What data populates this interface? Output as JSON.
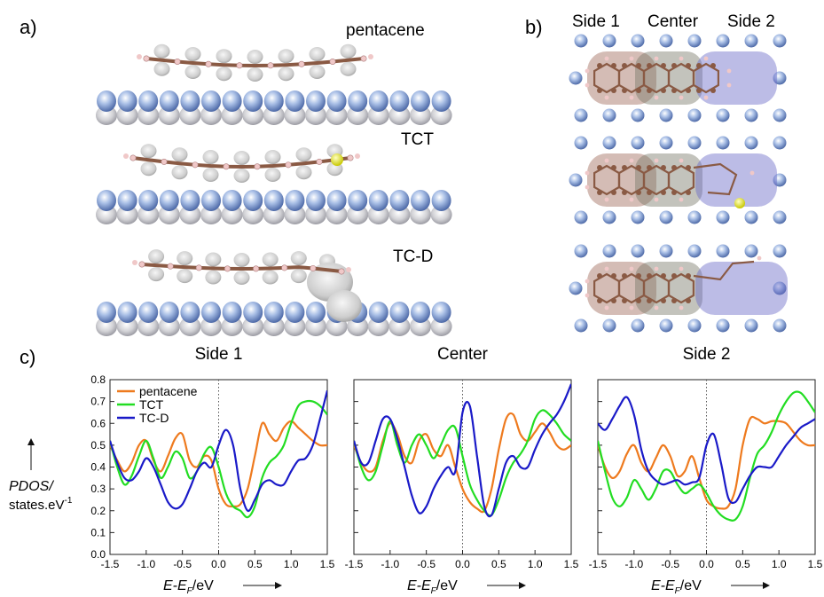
{
  "panels": {
    "a": {
      "label": "a)",
      "molecules": [
        "pentacene",
        "TCT",
        "TC-D"
      ]
    },
    "b": {
      "label": "b)",
      "regions": [
        "Side 1",
        "Center",
        "Side 2"
      ]
    },
    "c": {
      "label": "c)"
    }
  },
  "colors": {
    "pentacene": "#ee7a1e",
    "TCT": "#22dd22",
    "TC-D": "#1a1ac8",
    "carbon": "#8a5a44",
    "hydrogen": "#f0c8c8",
    "sulfur": "#e6e61e",
    "metal": "#8aa6d8",
    "side1_region": "#a06a5a",
    "center_region": "#7a7a6a",
    "side2_region": "#6a6ac8"
  },
  "chart_data": {
    "type": "line",
    "ylabel_main": "PDOS/",
    "ylabel_unit": "states.eV",
    "ylabel_sup": "-1",
    "xlabel_main": "E-E",
    "xlabel_sub": "F",
    "xlabel_unit": "/eV",
    "xlim": [
      -1.5,
      1.5
    ],
    "ylim": [
      0.0,
      0.8
    ],
    "xticks": [
      -1.5,
      -1.0,
      -0.5,
      0.0,
      0.5,
      1.0,
      1.5
    ],
    "yticks": [
      0.0,
      0.1,
      0.2,
      0.3,
      0.4,
      0.5,
      0.6,
      0.7,
      0.8
    ],
    "legend": [
      "pentacene",
      "TCT",
      "TC-D"
    ],
    "legend_position": "top-left",
    "charts": [
      {
        "title": "Side 1",
        "series": [
          {
            "name": "pentacene",
            "x": [
              -1.5,
              -1.4,
              -1.3,
              -1.2,
              -1.1,
              -1.0,
              -0.9,
              -0.8,
              -0.7,
              -0.6,
              -0.5,
              -0.4,
              -0.3,
              -0.2,
              -0.1,
              0.0,
              0.1,
              0.2,
              0.3,
              0.4,
              0.5,
              0.6,
              0.7,
              0.8,
              0.9,
              1.0,
              1.1,
              1.2,
              1.3,
              1.4,
              1.5
            ],
            "y": [
              0.5,
              0.43,
              0.38,
              0.42,
              0.5,
              0.52,
              0.43,
              0.38,
              0.45,
              0.53,
              0.55,
              0.43,
              0.4,
              0.45,
              0.43,
              0.3,
              0.23,
              0.22,
              0.23,
              0.3,
              0.45,
              0.6,
              0.55,
              0.52,
              0.58,
              0.61,
              0.58,
              0.55,
              0.52,
              0.5,
              0.5
            ]
          },
          {
            "name": "TCT",
            "x": [
              -1.5,
              -1.4,
              -1.3,
              -1.2,
              -1.1,
              -1.0,
              -0.9,
              -0.8,
              -0.7,
              -0.6,
              -0.5,
              -0.4,
              -0.3,
              -0.2,
              -0.1,
              0.0,
              0.1,
              0.2,
              0.3,
              0.4,
              0.5,
              0.6,
              0.7,
              0.8,
              0.9,
              1.0,
              1.1,
              1.2,
              1.3,
              1.4,
              1.5
            ],
            "y": [
              0.52,
              0.4,
              0.32,
              0.36,
              0.45,
              0.52,
              0.44,
              0.35,
              0.4,
              0.47,
              0.44,
              0.35,
              0.38,
              0.46,
              0.49,
              0.4,
              0.28,
              0.22,
              0.2,
              0.17,
              0.22,
              0.35,
              0.42,
              0.45,
              0.5,
              0.6,
              0.68,
              0.7,
              0.7,
              0.68,
              0.64
            ]
          },
          {
            "name": "TC-D",
            "x": [
              -1.5,
              -1.4,
              -1.3,
              -1.2,
              -1.1,
              -1.0,
              -0.9,
              -0.8,
              -0.7,
              -0.6,
              -0.5,
              -0.4,
              -0.3,
              -0.2,
              -0.1,
              0.0,
              0.1,
              0.2,
              0.3,
              0.4,
              0.5,
              0.6,
              0.7,
              0.8,
              0.9,
              1.0,
              1.1,
              1.2,
              1.3,
              1.4,
              1.5
            ],
            "y": [
              0.52,
              0.42,
              0.35,
              0.34,
              0.38,
              0.44,
              0.4,
              0.32,
              0.24,
              0.21,
              0.23,
              0.3,
              0.38,
              0.42,
              0.4,
              0.5,
              0.57,
              0.5,
              0.3,
              0.2,
              0.25,
              0.32,
              0.34,
              0.32,
              0.32,
              0.38,
              0.43,
              0.44,
              0.5,
              0.62,
              0.75
            ]
          }
        ]
      },
      {
        "title": "Center",
        "series": [
          {
            "name": "pentacene",
            "x": [
              -1.5,
              -1.4,
              -1.3,
              -1.2,
              -1.1,
              -1.0,
              -0.9,
              -0.8,
              -0.7,
              -0.6,
              -0.5,
              -0.4,
              -0.3,
              -0.2,
              -0.1,
              0.0,
              0.1,
              0.2,
              0.3,
              0.4,
              0.5,
              0.6,
              0.7,
              0.8,
              0.9,
              1.0,
              1.1,
              1.2,
              1.3,
              1.4,
              1.5
            ],
            "y": [
              0.5,
              0.42,
              0.38,
              0.4,
              0.52,
              0.6,
              0.55,
              0.45,
              0.42,
              0.52,
              0.55,
              0.48,
              0.45,
              0.5,
              0.4,
              0.3,
              0.24,
              0.21,
              0.2,
              0.3,
              0.48,
              0.62,
              0.64,
              0.55,
              0.52,
              0.56,
              0.6,
              0.56,
              0.5,
              0.48,
              0.5
            ]
          },
          {
            "name": "TCT",
            "x": [
              -1.5,
              -1.4,
              -1.3,
              -1.2,
              -1.1,
              -1.0,
              -0.9,
              -0.8,
              -0.7,
              -0.6,
              -0.5,
              -0.4,
              -0.3,
              -0.2,
              -0.1,
              0.0,
              0.1,
              0.2,
              0.3,
              0.4,
              0.5,
              0.6,
              0.7,
              0.8,
              0.9,
              1.0,
              1.1,
              1.2,
              1.3,
              1.4,
              1.5
            ],
            "y": [
              0.52,
              0.4,
              0.34,
              0.38,
              0.5,
              0.61,
              0.5,
              0.42,
              0.5,
              0.55,
              0.5,
              0.44,
              0.5,
              0.57,
              0.58,
              0.45,
              0.32,
              0.25,
              0.2,
              0.18,
              0.25,
              0.35,
              0.42,
              0.46,
              0.52,
              0.62,
              0.66,
              0.64,
              0.6,
              0.55,
              0.52
            ]
          },
          {
            "name": "TC-D",
            "x": [
              -1.5,
              -1.4,
              -1.3,
              -1.2,
              -1.1,
              -1.0,
              -0.9,
              -0.8,
              -0.7,
              -0.6,
              -0.5,
              -0.4,
              -0.3,
              -0.2,
              -0.1,
              0.0,
              0.1,
              0.2,
              0.3,
              0.4,
              0.5,
              0.6,
              0.7,
              0.8,
              0.9,
              1.0,
              1.1,
              1.2,
              1.3,
              1.4,
              1.5
            ],
            "y": [
              0.52,
              0.42,
              0.42,
              0.52,
              0.62,
              0.62,
              0.53,
              0.4,
              0.27,
              0.19,
              0.22,
              0.3,
              0.36,
              0.4,
              0.38,
              0.65,
              0.68,
              0.45,
              0.22,
              0.18,
              0.3,
              0.42,
              0.45,
              0.4,
              0.4,
              0.48,
              0.55,
              0.6,
              0.64,
              0.7,
              0.78
            ]
          }
        ]
      },
      {
        "title": "Side 2",
        "series": [
          {
            "name": "pentacene",
            "x": [
              -1.5,
              -1.4,
              -1.3,
              -1.2,
              -1.1,
              -1.0,
              -0.9,
              -0.8,
              -0.7,
              -0.6,
              -0.5,
              -0.4,
              -0.3,
              -0.2,
              -0.1,
              0.0,
              0.1,
              0.2,
              0.3,
              0.4,
              0.5,
              0.6,
              0.7,
              0.8,
              0.9,
              1.0,
              1.1,
              1.2,
              1.3,
              1.4,
              1.5
            ],
            "y": [
              0.5,
              0.4,
              0.35,
              0.38,
              0.46,
              0.5,
              0.42,
              0.38,
              0.44,
              0.5,
              0.45,
              0.36,
              0.38,
              0.45,
              0.35,
              0.25,
              0.22,
              0.21,
              0.22,
              0.3,
              0.5,
              0.62,
              0.62,
              0.6,
              0.61,
              0.61,
              0.6,
              0.56,
              0.52,
              0.5,
              0.5
            ]
          },
          {
            "name": "TCT",
            "x": [
              -1.5,
              -1.4,
              -1.3,
              -1.2,
              -1.1,
              -1.0,
              -0.9,
              -0.8,
              -0.7,
              -0.6,
              -0.5,
              -0.4,
              -0.3,
              -0.2,
              -0.1,
              0.0,
              0.1,
              0.2,
              0.3,
              0.4,
              0.5,
              0.6,
              0.7,
              0.8,
              0.9,
              1.0,
              1.1,
              1.2,
              1.3,
              1.4,
              1.5
            ],
            "y": [
              0.52,
              0.38,
              0.26,
              0.22,
              0.26,
              0.34,
              0.3,
              0.25,
              0.3,
              0.38,
              0.38,
              0.32,
              0.28,
              0.3,
              0.32,
              0.28,
              0.22,
              0.18,
              0.16,
              0.16,
              0.22,
              0.35,
              0.46,
              0.5,
              0.56,
              0.64,
              0.7,
              0.74,
              0.74,
              0.7,
              0.65
            ]
          },
          {
            "name": "TC-D",
            "x": [
              -1.5,
              -1.4,
              -1.3,
              -1.2,
              -1.1,
              -1.0,
              -0.9,
              -0.8,
              -0.7,
              -0.6,
              -0.5,
              -0.4,
              -0.3,
              -0.2,
              -0.1,
              0.0,
              0.1,
              0.2,
              0.3,
              0.4,
              0.5,
              0.6,
              0.7,
              0.8,
              0.9,
              1.0,
              1.1,
              1.2,
              1.3,
              1.4,
              1.5
            ],
            "y": [
              0.6,
              0.57,
              0.62,
              0.68,
              0.72,
              0.64,
              0.48,
              0.38,
              0.34,
              0.32,
              0.33,
              0.34,
              0.32,
              0.33,
              0.35,
              0.5,
              0.55,
              0.42,
              0.26,
              0.24,
              0.3,
              0.36,
              0.4,
              0.4,
              0.4,
              0.45,
              0.5,
              0.54,
              0.58,
              0.6,
              0.62
            ]
          }
        ]
      }
    ]
  }
}
